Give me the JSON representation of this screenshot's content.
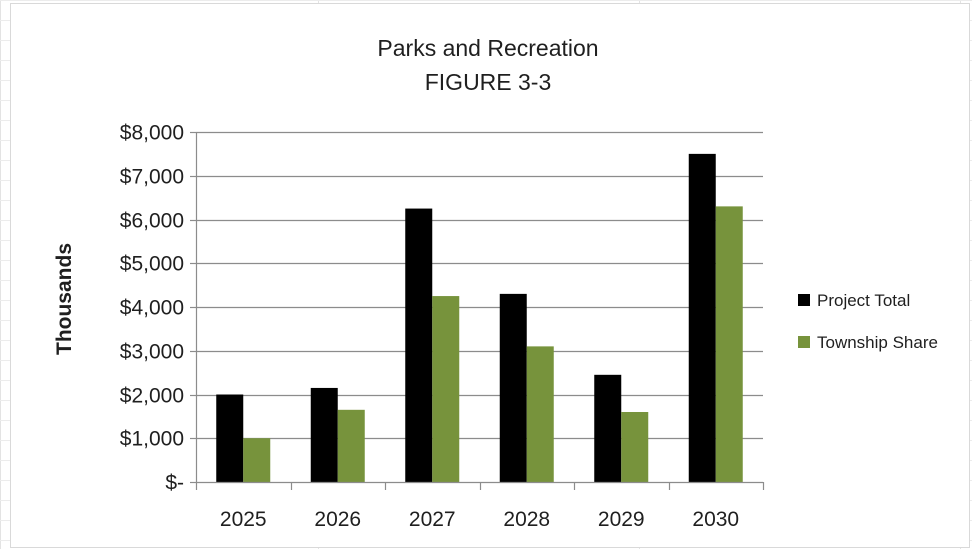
{
  "chart_data": {
    "type": "bar",
    "title": "Parks and Recreation",
    "subtitle": "FIGURE 3-3",
    "xlabel": "",
    "ylabel": "Thousands",
    "categories": [
      "2025",
      "2026",
      "2027",
      "2028",
      "2029",
      "2030"
    ],
    "ylim": [
      0,
      8000
    ],
    "yticks": [
      0,
      1000,
      2000,
      3000,
      4000,
      5000,
      6000,
      7000,
      8000
    ],
    "ytick_labels": [
      "$-",
      "$1,000",
      "$2,000",
      "$3,000",
      "$4,000",
      "$5,000",
      "$6,000",
      "$7,000",
      "$8,000"
    ],
    "grid": true,
    "legend_position": "right",
    "series": [
      {
        "name": "Project Total",
        "color": "#000000",
        "values": [
          2000,
          2150,
          6250,
          4300,
          2450,
          7500
        ]
      },
      {
        "name": "Township Share",
        "color": "#77933c",
        "values": [
          1000,
          1650,
          4250,
          3100,
          1600,
          6300
        ]
      }
    ]
  }
}
